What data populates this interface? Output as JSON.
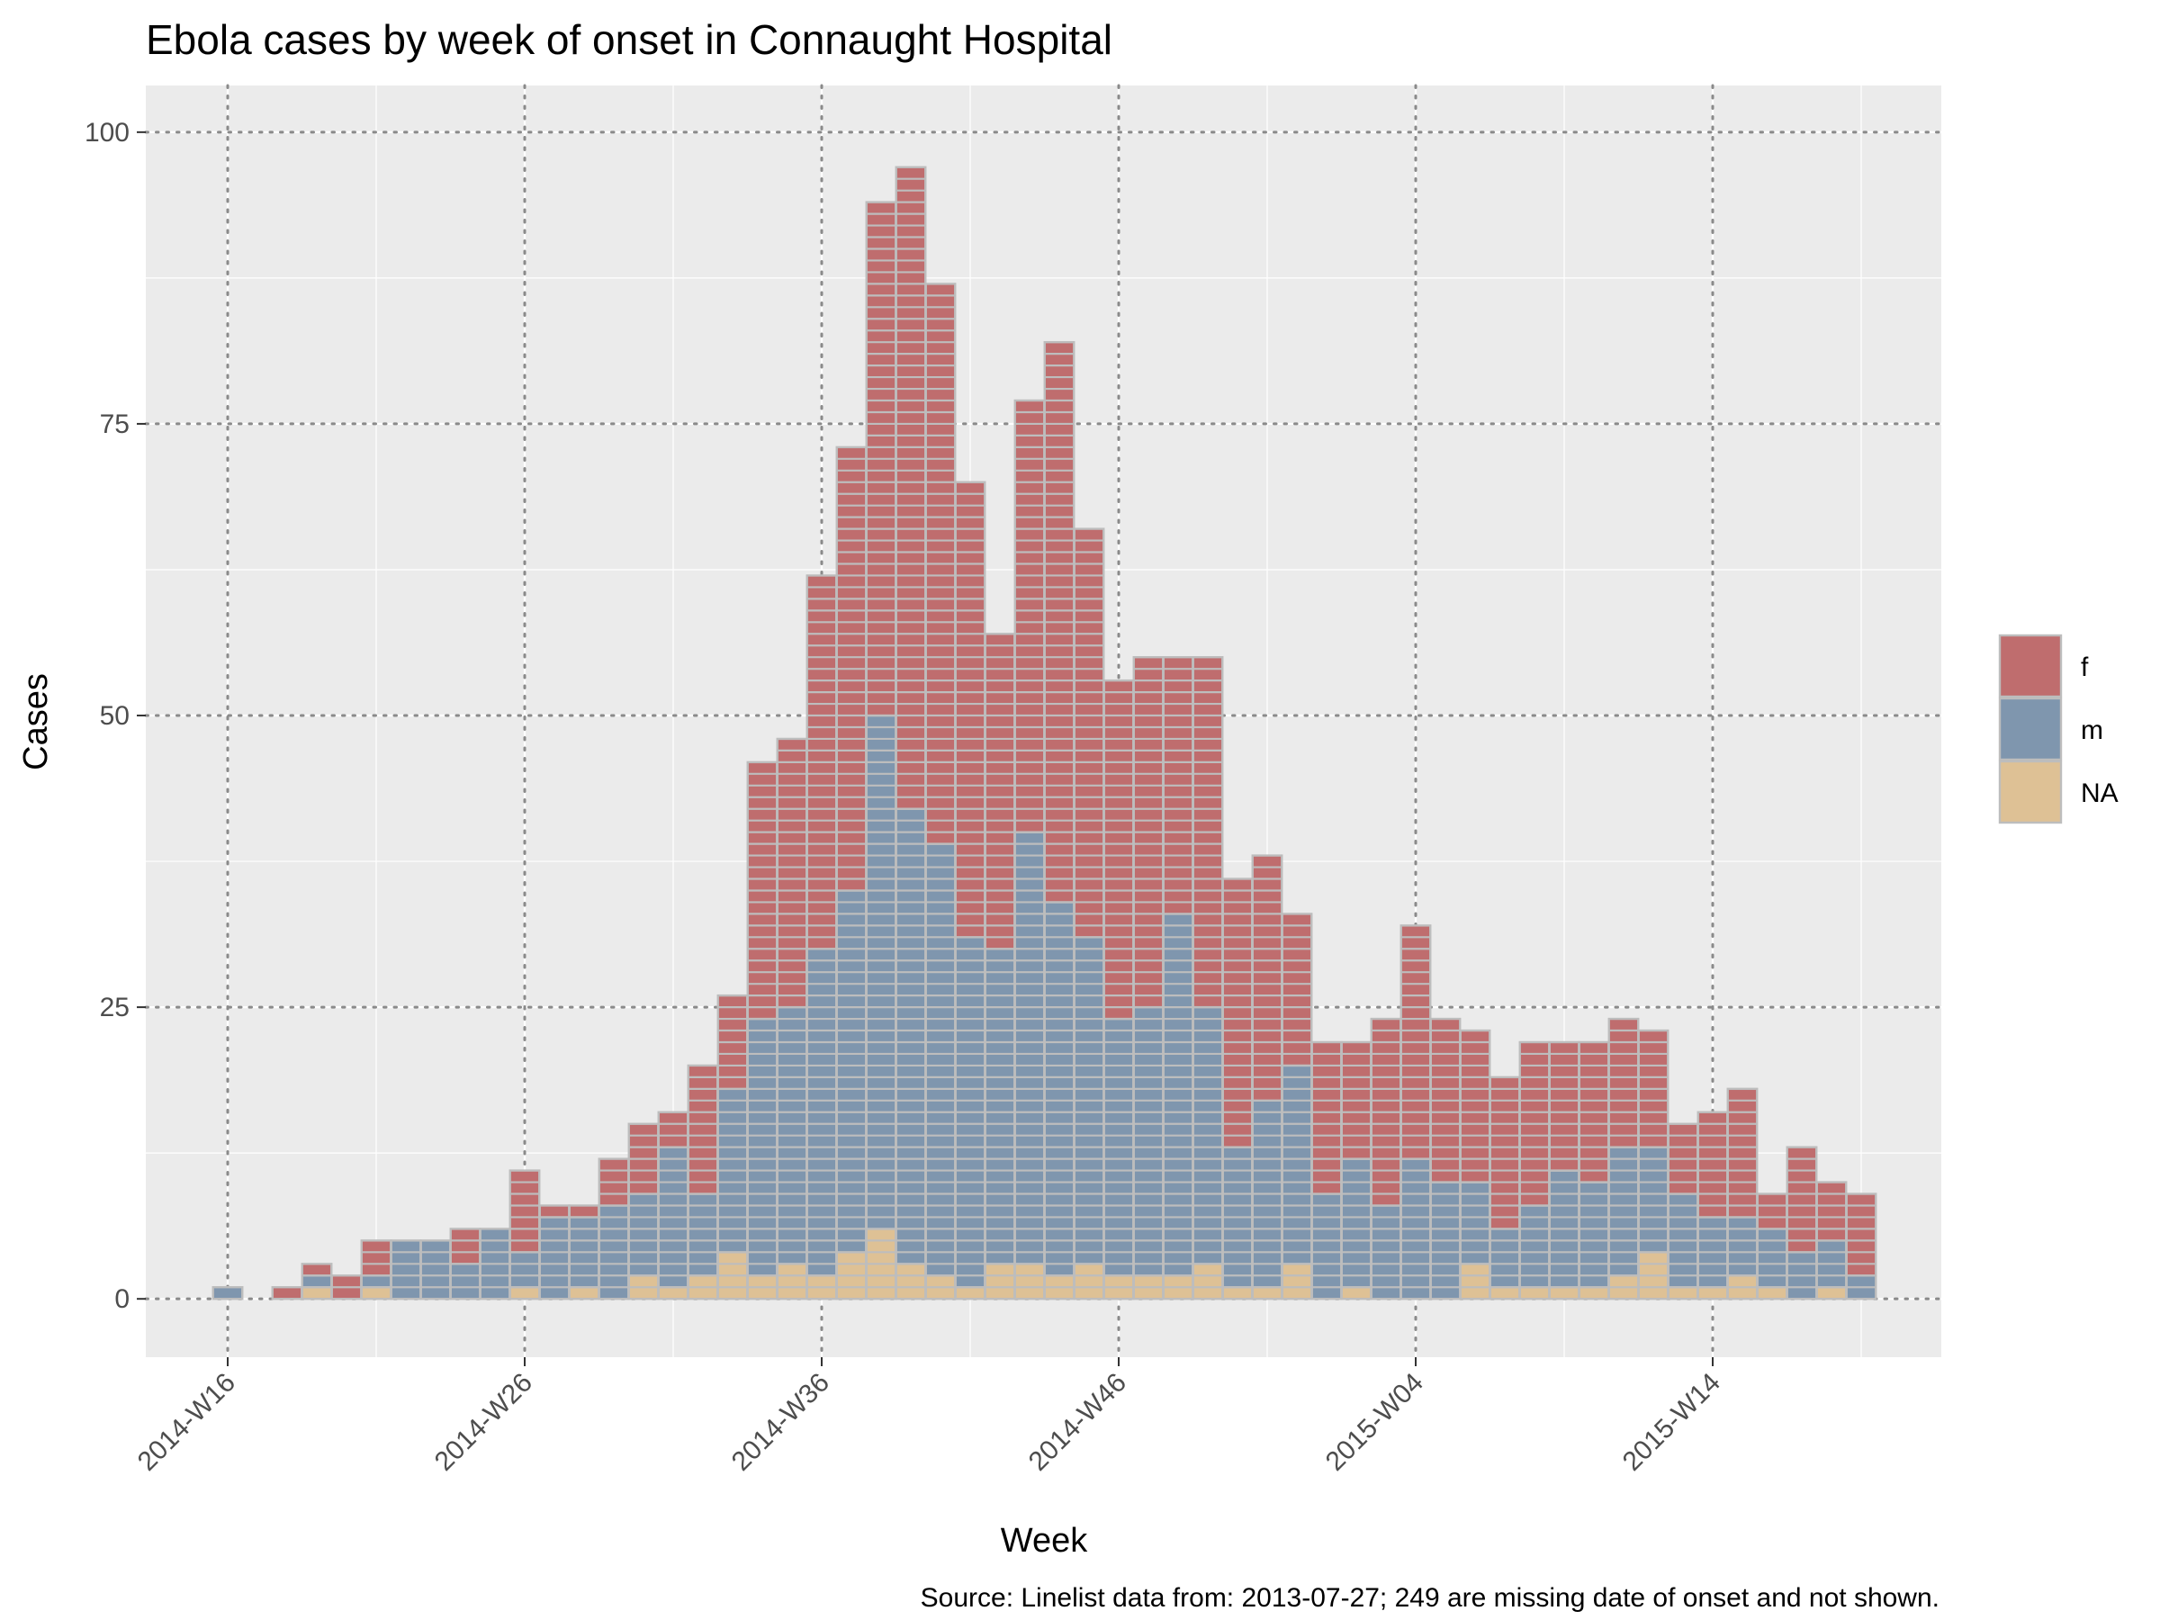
{
  "chart_data": {
    "type": "bar",
    "stacked": true,
    "title": "Ebola cases by week of onset in Connaught Hospital",
    "xlabel": "Week",
    "ylabel": "Cases",
    "caption": "Source: Linelist data from: 2013-07-27; 249 are missing date of onset and not shown.",
    "x_tick_labels": [
      "2014-W16",
      "2014-W26",
      "2014-W36",
      "2014-W46",
      "2015-W04",
      "2015-W14"
    ],
    "y_ticks": [
      0,
      25,
      50,
      75,
      100
    ],
    "ylim": [
      -5,
      104
    ],
    "grid": true,
    "legend_position": "right",
    "categories": [
      "2014-W16",
      "2014-W17",
      "2014-W18",
      "2014-W19",
      "2014-W20",
      "2014-W21",
      "2014-W22",
      "2014-W23",
      "2014-W24",
      "2014-W25",
      "2014-W26",
      "2014-W27",
      "2014-W28",
      "2014-W29",
      "2014-W30",
      "2014-W31",
      "2014-W32",
      "2014-W33",
      "2014-W34",
      "2014-W35",
      "2014-W36",
      "2014-W37",
      "2014-W38",
      "2014-W39",
      "2014-W40",
      "2014-W41",
      "2014-W42",
      "2014-W43",
      "2014-W44",
      "2014-W45",
      "2014-W46",
      "2014-W47",
      "2014-W48",
      "2014-W49",
      "2014-W50",
      "2014-W51",
      "2014-W52",
      "2015-W01",
      "2015-W02",
      "2015-W03",
      "2015-W04",
      "2015-W05",
      "2015-W06",
      "2015-W07",
      "2015-W08",
      "2015-W09",
      "2015-W10",
      "2015-W11",
      "2015-W12",
      "2015-W13",
      "2015-W14",
      "2015-W15",
      "2015-W16",
      "2015-W17",
      "2015-W18",
      "2015-W19"
    ],
    "series": [
      {
        "name": "NA",
        "color": "#dec195",
        "values": [
          0,
          0,
          0,
          1,
          0,
          1,
          0,
          0,
          0,
          0,
          1,
          0,
          1,
          0,
          2,
          1,
          2,
          4,
          2,
          3,
          2,
          4,
          6,
          3,
          2,
          1,
          3,
          3,
          2,
          3,
          2,
          2,
          2,
          3,
          1,
          1,
          3,
          0,
          1,
          0,
          0,
          0,
          3,
          1,
          1,
          1,
          1,
          2,
          4,
          1,
          1,
          2,
          1,
          0,
          1,
          0
        ]
      },
      {
        "name": "m",
        "color": "#7f96ae",
        "values": [
          1,
          0,
          0,
          1,
          0,
          1,
          5,
          5,
          3,
          6,
          3,
          7,
          6,
          8,
          7,
          12,
          7,
          14,
          22,
          22,
          28,
          31,
          44,
          39,
          37,
          30,
          27,
          37,
          32,
          28,
          22,
          23,
          31,
          22,
          12,
          16,
          17,
          9,
          11,
          8,
          12,
          10,
          7,
          5,
          7,
          10,
          9,
          11,
          9,
          8,
          6,
          5,
          5,
          4,
          4,
          2
        ]
      },
      {
        "name": "f",
        "color": "#bf6d6e",
        "values": [
          0,
          0,
          1,
          1,
          2,
          3,
          0,
          0,
          3,
          0,
          7,
          1,
          1,
          4,
          6,
          3,
          11,
          8,
          22,
          23,
          32,
          38,
          44,
          55,
          48,
          39,
          27,
          37,
          48,
          35,
          29,
          30,
          22,
          30,
          23,
          21,
          13,
          13,
          10,
          16,
          20,
          14,
          13,
          13,
          14,
          11,
          12,
          11,
          10,
          6,
          9,
          11,
          3,
          9,
          5,
          7
        ]
      }
    ]
  },
  "legend": {
    "items": [
      {
        "label": "f",
        "color": "#bf6d6e"
      },
      {
        "label": "m",
        "color": "#7f96ae"
      },
      {
        "label": "NA",
        "color": "#dec195"
      }
    ]
  }
}
